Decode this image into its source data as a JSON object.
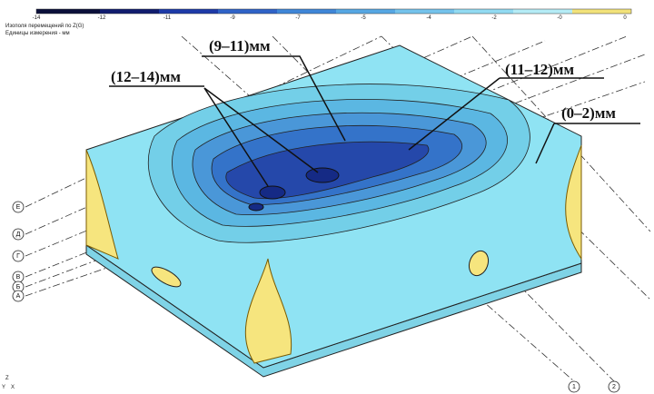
{
  "header": {
    "title": "Изополя перемещений по Z(G)",
    "units": "Единицы измерения - мм"
  },
  "scale": {
    "labels": [
      "-14",
      "-12",
      "-11",
      "-9",
      "-7",
      "-5",
      "-4",
      "-2",
      "-0",
      "0"
    ]
  },
  "annotations": [
    "(9–11)мм",
    "(12–14)мм",
    "(11–12)мм",
    "(0–2)мм"
  ],
  "axes_left": [
    "Е",
    "Д",
    "Г",
    "В",
    "Б",
    "А"
  ],
  "axes_bottom": [
    "1",
    "2"
  ],
  "triad": [
    "Y",
    "Z",
    "X"
  ]
}
